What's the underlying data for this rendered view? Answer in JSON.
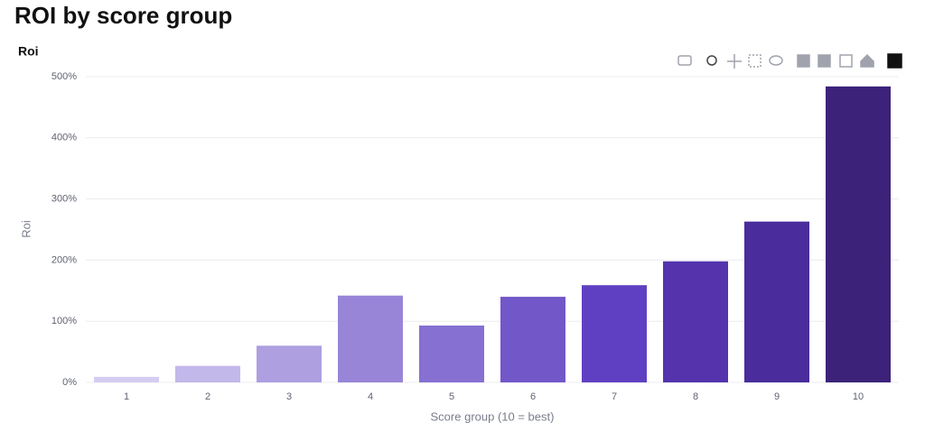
{
  "page_title": "ROI by score group",
  "chart_data": {
    "type": "bar",
    "title": "Roi",
    "x_label": "Score group (10 = best)",
    "y_label": "Roi",
    "categories": [
      "1",
      "2",
      "3",
      "4",
      "5",
      "6",
      "7",
      "8",
      "9",
      "10"
    ],
    "values": [
      9,
      27,
      60,
      142,
      93,
      140,
      159,
      198,
      263,
      484
    ],
    "colors": [
      "#d4cdf0",
      "#c3b8ea",
      "#ad9fe0",
      "#9885d8",
      "#8670d2",
      "#7257c9",
      "#6040c2",
      "#5433ad",
      "#4a2c9c",
      "#3c2379"
    ],
    "ylim": [
      0,
      500
    ],
    "yticks": [
      {
        "value": 0,
        "label": "0%"
      },
      {
        "value": 100,
        "label": "100%"
      },
      {
        "value": 200,
        "label": "200%"
      },
      {
        "value": 300,
        "label": "300%"
      },
      {
        "value": 400,
        "label": "400%"
      },
      {
        "value": 500,
        "label": "500%"
      }
    ],
    "grid": true
  }
}
